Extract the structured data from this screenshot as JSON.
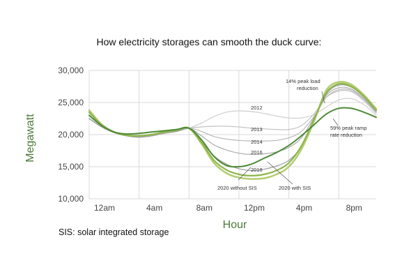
{
  "title": "How electricity storages can smooth the duck curve:",
  "footnote": "SIS: solar integrated storage",
  "colors": {
    "gray_light": "#cfcfcf",
    "gray_mid": "#b8b8b8",
    "gray_dark": "#9c9c9c",
    "green_light": "#b4cd72",
    "green_mid": "#8db64a",
    "green_dark": "#4c8a36",
    "axis_text": "#4a7a38"
  },
  "chart_data": {
    "type": "line",
    "xlabel": "Hour",
    "ylabel": "Megawatt",
    "x_hours": [
      0,
      1,
      2,
      3,
      4,
      5,
      6,
      7,
      8,
      9,
      10,
      11,
      12,
      13,
      14,
      15,
      16,
      17,
      18,
      19,
      20,
      21,
      22,
      23
    ],
    "xticks": [
      {
        "hour": 0,
        "label": "12am"
      },
      {
        "hour": 4,
        "label": "4am"
      },
      {
        "hour": 8,
        "label": "8am"
      },
      {
        "hour": 12,
        "label": "12pm"
      },
      {
        "hour": 16,
        "label": "4pm"
      },
      {
        "hour": 20,
        "label": "8pm"
      }
    ],
    "yticks": [
      10000,
      15000,
      20000,
      25000,
      30000
    ],
    "ytick_labels": [
      "10,000",
      "15,000",
      "20,000",
      "25,000",
      "30,000"
    ],
    "ylim": [
      10000,
      30000
    ],
    "xlim": [
      0,
      23
    ],
    "grid": true,
    "series": [
      {
        "name": "2012",
        "color": "#cfcfcf",
        "width": 1.2,
        "values": [
          22500,
          21200,
          20300,
          19800,
          19600,
          19800,
          20200,
          20500,
          21000,
          21800,
          22800,
          23500,
          23700,
          23600,
          23300,
          22900,
          22600,
          22600,
          23100,
          24300,
          25400,
          25600,
          24700,
          23000
        ]
      },
      {
        "name": "2013",
        "color": "#c2c2c2",
        "width": 1.2,
        "values": [
          22500,
          21200,
          20300,
          19800,
          19600,
          19800,
          20200,
          20500,
          21000,
          21200,
          21300,
          21300,
          21200,
          21000,
          20900,
          20800,
          20800,
          21400,
          23200,
          25800,
          26800,
          26700,
          25300,
          23300
        ]
      },
      {
        "name": "2014",
        "color": "#b8b8b8",
        "width": 1.2,
        "values": [
          22500,
          21200,
          20300,
          19800,
          19600,
          19800,
          20200,
          20500,
          21000,
          20500,
          19700,
          19300,
          19100,
          19000,
          19000,
          19100,
          19500,
          20500,
          22800,
          25800,
          27000,
          26900,
          25500,
          23500
        ]
      },
      {
        "name": "2016",
        "color": "#ababab",
        "width": 1.2,
        "values": [
          22500,
          21200,
          20300,
          19800,
          19600,
          19800,
          20200,
          20500,
          21000,
          19800,
          18400,
          17600,
          17100,
          16900,
          17000,
          17300,
          18000,
          19500,
          22600,
          26100,
          27300,
          27100,
          25700,
          23600
        ]
      },
      {
        "name": "2018",
        "color": "#9c9c9c",
        "width": 1.2,
        "values": [
          22500,
          21200,
          20300,
          19800,
          19600,
          19800,
          20200,
          20500,
          21000,
          18900,
          16700,
          15400,
          14700,
          14400,
          14600,
          15100,
          16000,
          18100,
          22000,
          26300,
          27700,
          27400,
          25900,
          23700
        ]
      },
      {
        "name": "2020 without SIS",
        "color": "#b4cd72",
        "width": 2.6,
        "values": [
          23800,
          21600,
          20400,
          19900,
          19800,
          20000,
          20400,
          20700,
          21000,
          18600,
          15600,
          14000,
          13300,
          13100,
          13200,
          13800,
          15000,
          17700,
          22000,
          26900,
          28200,
          27800,
          26200,
          24000
        ]
      },
      {
        "name": "2020 with SIS",
        "color": "#8db64a",
        "width": 2.2,
        "values": [
          23500,
          21500,
          20400,
          19900,
          19800,
          20000,
          20400,
          20700,
          21000,
          18800,
          16000,
          14500,
          13800,
          13600,
          13800,
          14400,
          15600,
          18200,
          22300,
          26500,
          27900,
          27500,
          26000,
          23800
        ]
      },
      {
        "name": "",
        "color": "#4c8a36",
        "width": 2.0,
        "values": [
          23000,
          21400,
          20400,
          20100,
          20200,
          20400,
          20600,
          20800,
          21000,
          19200,
          16600,
          15200,
          15000,
          15400,
          16300,
          17200,
          18300,
          19800,
          21500,
          23200,
          24100,
          24100,
          23500,
          22700
        ]
      }
    ],
    "annotations": {
      "label_2012": "2012",
      "label_2013": "2013",
      "label_2014": "2014",
      "label_2016": "2016",
      "label_2018": "2018",
      "label_without": "2020 without SIS",
      "label_with": "2020 with SIS",
      "peak_load_line1": "14% peak load",
      "peak_load_line2": "reduction",
      "ramp_line1": "59% peak ramp",
      "ramp_line2": "rate reduction"
    }
  }
}
